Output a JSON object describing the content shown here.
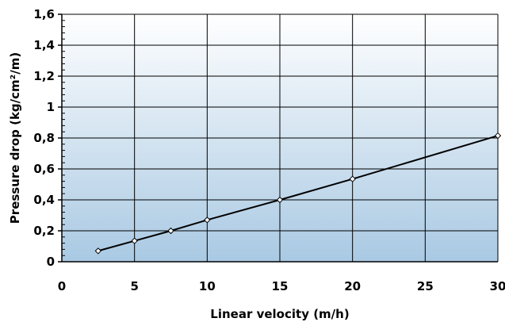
{
  "chart_data": {
    "type": "line",
    "xlabel": "Linear velocity (m/h)",
    "ylabel": "Pressure drop (kg/cm²/m)",
    "xlim": [
      0,
      30
    ],
    "ylim": [
      0,
      1.6
    ],
    "grid": true,
    "background": "vertical gradient, white at top to light blue at bottom",
    "x_ticks": [
      0,
      5,
      10,
      15,
      20,
      25,
      30
    ],
    "x_tick_labels": [
      "0",
      "5",
      "10",
      "15",
      "20",
      "25",
      "30"
    ],
    "y_ticks": [
      0,
      0.2,
      0.4,
      0.6,
      0.8,
      1.0,
      1.2,
      1.4,
      1.6
    ],
    "y_tick_labels": [
      "0",
      "0,2",
      "0,4",
      "0,6",
      "0,8",
      "1",
      "1,2",
      "1,4",
      "1,6"
    ],
    "series": [
      {
        "marker": "diamond",
        "color": "#000000",
        "x": [
          2.5,
          5,
          7.5,
          10,
          15,
          20,
          30
        ],
        "y": [
          0.07,
          0.135,
          0.2,
          0.27,
          0.4,
          0.535,
          0.815
        ]
      }
    ]
  },
  "colors": {
    "plot_top": "#ffffff",
    "plot_bottom": "#a9c9e3",
    "line": "#000000",
    "grid": "#000000"
  }
}
